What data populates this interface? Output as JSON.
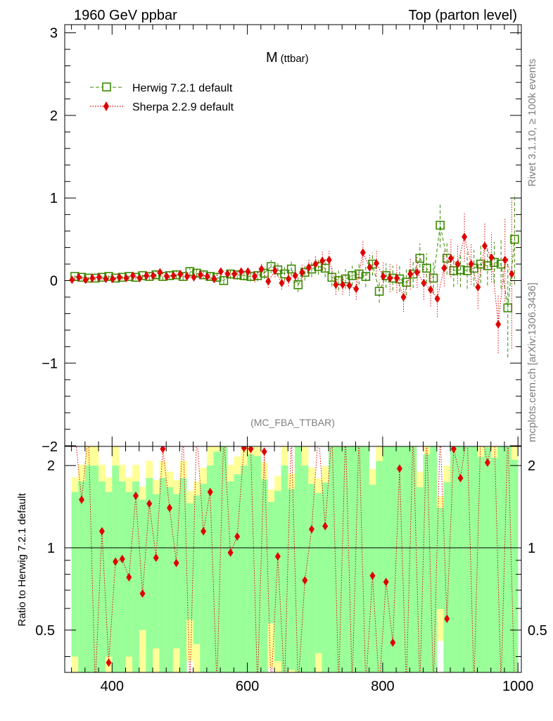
{
  "header": {
    "left": "1960 GeV ppbar",
    "right": "Top (parton level)"
  },
  "side_labels": {
    "rivet": "Rivet 3.1.10, ≥ 100k events",
    "mcplots": "mcplots.cern.ch [arXiv:1306.3436]"
  },
  "chart_data": {
    "type": "scatter",
    "title_main": "M",
    "title_sub": "(ttbar)",
    "analysis_label": "(MC_FBA_TTBAR)",
    "xlim": [
      330,
      1005
    ],
    "ylim": [
      -2,
      3.1
    ],
    "x_ticks": [
      "400",
      "600",
      "800",
      "1000"
    ],
    "y_ticks": [
      "−1",
      "0",
      "1",
      "2",
      "3"
    ],
    "y_bottom_label": "−2",
    "legend": {
      "position": "top-left",
      "entries": [
        {
          "name": "Herwig 7.2.1 default",
          "color": "#3a8a00",
          "marker": "open-square",
          "line": "dashed"
        },
        {
          "name": "Sherpa 2.2.9 default",
          "color": "#e00000",
          "marker": "diamond",
          "line": "dotted"
        }
      ]
    },
    "x": [
      345,
      355,
      365,
      375,
      385,
      395,
      405,
      415,
      425,
      435,
      445,
      455,
      465,
      475,
      485,
      495,
      505,
      515,
      525,
      535,
      545,
      555,
      565,
      575,
      585,
      595,
      605,
      615,
      625,
      635,
      645,
      655,
      665,
      675,
      685,
      695,
      705,
      715,
      725,
      735,
      745,
      755,
      765,
      775,
      785,
      795,
      805,
      815,
      825,
      835,
      845,
      855,
      865,
      875,
      885,
      895,
      905,
      915,
      925,
      935,
      945,
      955,
      965,
      975,
      985,
      995
    ],
    "series": [
      {
        "name": "Herwig 7.2.1 default",
        "values": [
          0.05,
          0.04,
          0.03,
          0.03,
          0.04,
          0.05,
          0.03,
          0.04,
          0.05,
          0.04,
          0.06,
          0.05,
          0.07,
          0.05,
          0.06,
          0.07,
          0.05,
          0.11,
          0.09,
          0.07,
          0.05,
          0.04,
          0.0,
          0.08,
          0.07,
          0.06,
          0.05,
          0.06,
          0.09,
          0.17,
          0.13,
          0.08,
          0.14,
          -0.05,
          0.1,
          0.14,
          0.17,
          0.15,
          0.04,
          0.0,
          0.02,
          0.06,
          0.08,
          0.05,
          0.2,
          -0.13,
          0.06,
          0.03,
          0.02,
          -0.02,
          0.08,
          0.27,
          0.15,
          0.03,
          0.67,
          0.27,
          0.12,
          0.13,
          0.12,
          0.15,
          0.2,
          0.18,
          0.22,
          0.2,
          -0.33,
          0.5
        ],
        "errors": [
          0.03,
          0.03,
          0.03,
          0.03,
          0.03,
          0.03,
          0.03,
          0.03,
          0.03,
          0.03,
          0.03,
          0.04,
          0.04,
          0.04,
          0.04,
          0.04,
          0.04,
          0.05,
          0.05,
          0.05,
          0.05,
          0.05,
          0.05,
          0.06,
          0.06,
          0.06,
          0.06,
          0.07,
          0.07,
          0.08,
          0.08,
          0.08,
          0.09,
          0.09,
          0.1,
          0.1,
          0.1,
          0.11,
          0.11,
          0.12,
          0.12,
          0.12,
          0.13,
          0.13,
          0.14,
          0.14,
          0.15,
          0.15,
          0.16,
          0.16,
          0.17,
          0.18,
          0.18,
          0.19,
          0.27,
          0.2,
          0.2,
          0.21,
          0.22,
          0.22,
          0.23,
          0.24,
          0.25,
          0.3,
          0.6,
          0.55
        ]
      },
      {
        "name": "Sherpa 2.2.9 default",
        "values": [
          0.01,
          0.04,
          0.01,
          0.03,
          0.04,
          0.02,
          0.02,
          0.04,
          0.03,
          0.06,
          0.03,
          0.06,
          0.06,
          0.1,
          0.05,
          0.06,
          0.08,
          0.05,
          0.04,
          0.07,
          0.05,
          0.02,
          0.11,
          0.08,
          0.08,
          0.11,
          0.11,
          0.05,
          0.14,
          -0.01,
          0.12,
          -0.03,
          0.02,
          0.06,
          0.1,
          0.16,
          0.2,
          0.24,
          0.25,
          -0.05,
          -0.05,
          -0.06,
          -0.1,
          0.34,
          0.16,
          0.21,
          0.05,
          0.03,
          0.03,
          -0.2,
          0.08,
          0.1,
          -0.03,
          -0.11,
          -0.22,
          0.15,
          0.27,
          0.2,
          0.53,
          0.2,
          -0.08,
          0.42,
          0.28,
          -0.53,
          0.25,
          0.08
        ],
        "errors": [
          0.03,
          0.03,
          0.03,
          0.03,
          0.03,
          0.03,
          0.03,
          0.03,
          0.03,
          0.03,
          0.03,
          0.04,
          0.04,
          0.04,
          0.04,
          0.04,
          0.04,
          0.05,
          0.05,
          0.05,
          0.05,
          0.05,
          0.05,
          0.06,
          0.06,
          0.06,
          0.06,
          0.07,
          0.07,
          0.08,
          0.08,
          0.08,
          0.09,
          0.09,
          0.1,
          0.1,
          0.1,
          0.11,
          0.11,
          0.12,
          0.12,
          0.12,
          0.13,
          0.15,
          0.16,
          0.16,
          0.17,
          0.17,
          0.18,
          0.18,
          0.19,
          0.19,
          0.2,
          0.2,
          0.22,
          0.22,
          0.23,
          0.24,
          0.3,
          0.25,
          0.26,
          0.28,
          0.3,
          0.35,
          0.5,
          0.9
        ]
      }
    ],
    "ratio": {
      "ylabel": "Ratio to Herwig 7.2.1 default",
      "ylim": [
        0.35,
        2.35
      ],
      "y_ticks": [
        "0.5",
        "1",
        "2"
      ],
      "reference_value": 1,
      "band_colors": {
        "stat": "#99ff99",
        "total": "#ffff99"
      },
      "sherpa_ratio": [
        null,
        1.5,
        null,
        null,
        1.15,
        0.38,
        0.89,
        0.91,
        0.78,
        1.55,
        0.68,
        1.45,
        0.92,
        2.3,
        1.4,
        0.88,
        null,
        null,
        null,
        1.15,
        1.6,
        null,
        null,
        0.96,
        1.1,
        2.32,
        2.3,
        null,
        2.25,
        null,
        0.93,
        null,
        null,
        null,
        0.76,
        1.17,
        null,
        1.2,
        null,
        null,
        null,
        null,
        null,
        null,
        0.79,
        null,
        0.75,
        0.45,
        1.95,
        null,
        null,
        null,
        null,
        null,
        null,
        0.55,
        2.3,
        1.8,
        null,
        null,
        null,
        2.05,
        null,
        null,
        null,
        null
      ]
    }
  }
}
